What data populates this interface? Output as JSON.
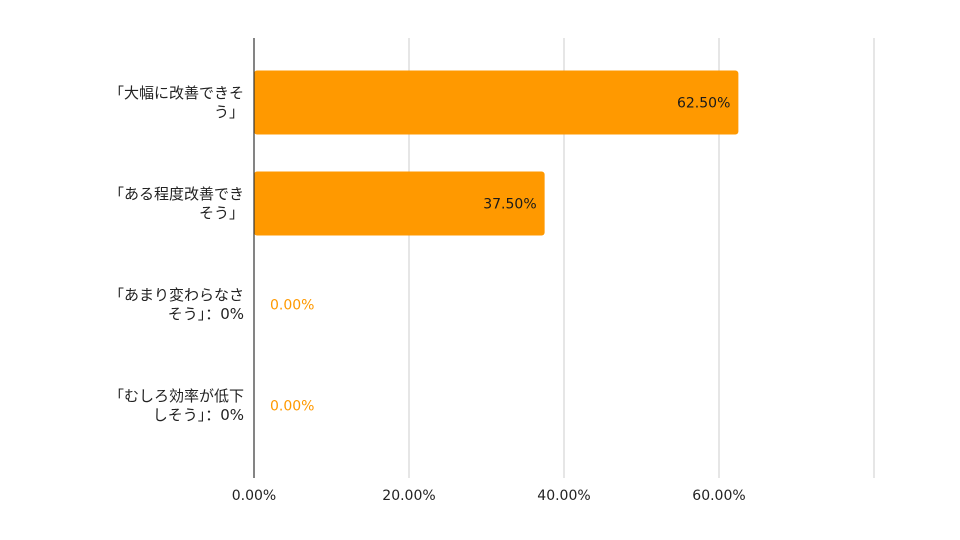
{
  "chart_data": {
    "type": "bar",
    "orientation": "horizontal",
    "categories": [
      [
        "「大幅に改善できそ",
        "う」"
      ],
      [
        "「ある程度改善でき",
        "そう」"
      ],
      [
        "「あまり変わらなさ",
        "そう」：0%"
      ],
      [
        "「むしろ効率が低下",
        "しそう」：0%"
      ]
    ],
    "values": [
      62.5,
      37.5,
      0,
      0
    ],
    "data_labels": [
      "62.50%",
      "37.50%",
      "0.00%",
      "0.00%"
    ],
    "x_ticks": [
      0,
      20,
      40,
      60
    ],
    "x_tick_labels": [
      "0.00%",
      "20.00%",
      "40.00%",
      "60.00%"
    ],
    "xlim": [
      0,
      80
    ],
    "grid": true,
    "title": "",
    "xlabel": "",
    "ylabel": "",
    "colors": {
      "bar": "#ff9900",
      "label_inside": "#1a1a1a",
      "label_outside": "#ff9900",
      "grid": "#cccccc",
      "axis": "#333333"
    }
  }
}
